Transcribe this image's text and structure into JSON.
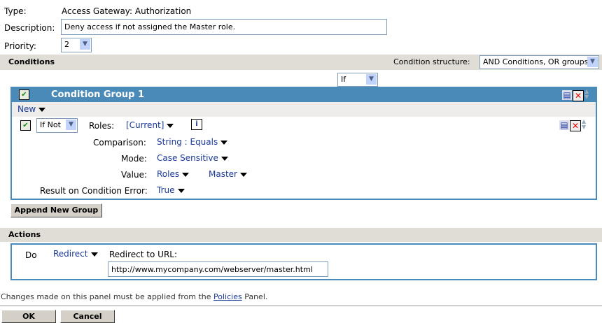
{
  "type": {
    "label": "Type:",
    "value": "Access Gateway: Authorization"
  },
  "description": {
    "label": "Description:",
    "value": "Deny access if not assigned the Master role."
  },
  "priority": {
    "label": "Priority:",
    "value": "2"
  },
  "conditions": {
    "title": "Conditions",
    "structure_label": "Condition structure:",
    "structure_value": "AND Conditions, OR groups",
    "if_value": "If",
    "group": {
      "title": "Condition Group 1",
      "new_label": "New",
      "condition": {
        "operator": "If Not",
        "roles_label": "Roles:",
        "roles_value": "[Current]",
        "comparison_label": "Comparison:",
        "comparison_value": "String : Equals",
        "mode_label": "Mode:",
        "mode_value": "Case Sensitive",
        "value_label": "Value:",
        "value_type": "Roles",
        "value_value": "Master",
        "error_label": "Result on Condition Error:",
        "error_value": "True"
      }
    },
    "append_label": "Append New Group"
  },
  "actions": {
    "title": "Actions",
    "do_label": "Do",
    "action_value": "Redirect",
    "url_label": "Redirect to URL:",
    "url_value": "http://www.mycompany.com/webserver/master.html"
  },
  "footer": {
    "note_prefix": "Changes made on this panel must be applied from the ",
    "note_link": "Policies",
    "note_suffix": " Panel.",
    "ok_label": "OK",
    "cancel_label": "Cancel"
  }
}
